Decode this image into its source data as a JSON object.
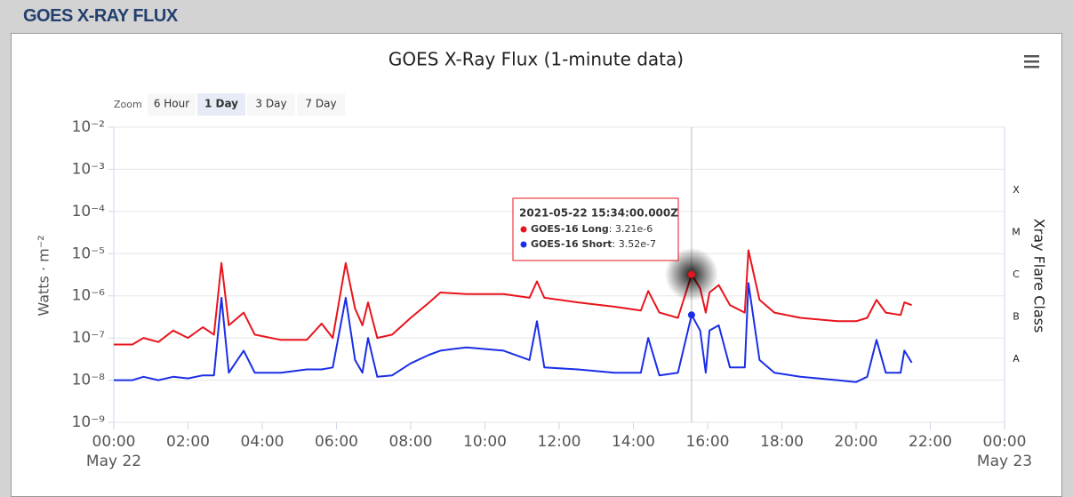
{
  "panel": {
    "title": "GOES X-RAY FLUX"
  },
  "zoom": {
    "label": "Zoom",
    "buttons": [
      "6 Hour",
      "1 Day",
      "3 Day",
      "7 Day"
    ],
    "selected": 1
  },
  "chart_data": {
    "type": "line",
    "title": "GOES X-Ray Flux (1-minute data)",
    "ylabel": "Watts · m⁻²",
    "y2label": "Xray Flare Class",
    "log_y": true,
    "grid": true,
    "ylim": [
      1e-09,
      0.01
    ],
    "yticks": [
      {
        "value": 1e-09,
        "label": "10⁻⁹"
      },
      {
        "value": 1e-08,
        "label": "10⁻⁸"
      },
      {
        "value": 1e-07,
        "label": "10⁻⁷"
      },
      {
        "value": 1e-06,
        "label": "10⁻⁶"
      },
      {
        "value": 1e-05,
        "label": "10⁻⁵"
      },
      {
        "value": 0.0001,
        "label": "10⁻⁴"
      },
      {
        "value": 0.001,
        "label": "10⁻³"
      },
      {
        "value": 0.01,
        "label": "10⁻²"
      }
    ],
    "y2lim": [
      1e-09,
      0.01
    ],
    "y2ticks": [
      {
        "value": 3.16e-08,
        "label": "A"
      },
      {
        "value": 3.16e-07,
        "label": "B"
      },
      {
        "value": 3.16e-06,
        "label": "C"
      },
      {
        "value": 3.16e-05,
        "label": "M"
      },
      {
        "value": 0.000316,
        "label": "X"
      }
    ],
    "xlim": [
      0,
      24
    ],
    "xticks": [
      {
        "value": 0,
        "label": "00:00"
      },
      {
        "value": 2,
        "label": "02:00"
      },
      {
        "value": 4,
        "label": "04:00"
      },
      {
        "value": 6,
        "label": "06:00"
      },
      {
        "value": 8,
        "label": "08:00"
      },
      {
        "value": 10,
        "label": "10:00"
      },
      {
        "value": 12,
        "label": "12:00"
      },
      {
        "value": 14,
        "label": "14:00"
      },
      {
        "value": 16,
        "label": "16:00"
      },
      {
        "value": 18,
        "label": "18:00"
      },
      {
        "value": 20,
        "label": "20:00"
      },
      {
        "value": 22,
        "label": "22:00"
      },
      {
        "value": 24,
        "label": "00:00"
      }
    ],
    "x_date_labels": [
      {
        "value": 0,
        "label": "May 22"
      },
      {
        "value": 24,
        "label": "May 23"
      }
    ],
    "x": [
      0,
      0.5,
      0.8,
      1.2,
      1.6,
      2.0,
      2.4,
      2.7,
      2.9,
      3.1,
      3.5,
      3.8,
      4.5,
      5.2,
      5.6,
      5.9,
      6.25,
      6.5,
      6.7,
      6.85,
      7.1,
      7.5,
      8.0,
      8.5,
      8.8,
      9.5,
      10.5,
      11.2,
      11.4,
      11.6,
      12.5,
      13.5,
      14.2,
      14.4,
      14.7,
      15.2,
      15.57,
      15.8,
      15.95,
      16.05,
      16.3,
      16.6,
      17.0,
      17.1,
      17.4,
      17.8,
      18.5,
      19.5,
      20.0,
      20.3,
      20.55,
      20.8,
      21.2,
      21.3,
      21.5
    ],
    "series": [
      {
        "name": "GOES-16 Long",
        "color": "#e8141c",
        "values": [
          7e-08,
          7e-08,
          1e-07,
          8e-08,
          1.5e-07,
          1e-07,
          1.8e-07,
          1.2e-07,
          6e-06,
          2e-07,
          4e-07,
          1.2e-07,
          9e-08,
          9e-08,
          2.2e-07,
          1e-07,
          6e-06,
          5e-07,
          2e-07,
          7e-07,
          1e-07,
          1.2e-07,
          3e-07,
          7e-07,
          1.2e-06,
          1.1e-06,
          1.1e-06,
          9e-07,
          2.2e-06,
          9e-07,
          7e-07,
          5.5e-07,
          4.5e-07,
          1.3e-06,
          4e-07,
          3e-07,
          3.21e-06,
          1.5e-06,
          4e-07,
          1.2e-06,
          1.8e-06,
          6e-07,
          4e-07,
          1.2e-05,
          8e-07,
          4e-07,
          3e-07,
          2.5e-07,
          2.5e-07,
          3e-07,
          8e-07,
          4e-07,
          3.5e-07,
          7e-07,
          6e-07
        ]
      },
      {
        "name": "GOES-16 Short",
        "color": "#1a2ee6",
        "values": [
          1e-08,
          1e-08,
          1.2e-08,
          1e-08,
          1.2e-08,
          1.1e-08,
          1.3e-08,
          1.3e-08,
          9e-07,
          1.5e-08,
          5e-08,
          1.5e-08,
          1.5e-08,
          1.8e-08,
          1.8e-08,
          2e-08,
          9e-07,
          3e-08,
          1.5e-08,
          1e-07,
          1.2e-08,
          1.3e-08,
          2.5e-08,
          4e-08,
          5e-08,
          6e-08,
          5e-08,
          3e-08,
          2.5e-07,
          2e-08,
          1.8e-08,
          1.5e-08,
          1.5e-08,
          1e-07,
          1.3e-08,
          1.5e-08,
          3.52e-07,
          1.5e-07,
          1.5e-08,
          1.5e-07,
          2e-07,
          2e-08,
          2e-08,
          2e-06,
          3e-08,
          1.5e-08,
          1.2e-08,
          1e-08,
          9e-09,
          1.2e-08,
          9e-08,
          1.5e-08,
          1.5e-08,
          5e-08,
          2.6e-08
        ]
      }
    ],
    "tooltip": {
      "title": "2021-05-22 15:34:00.000Z",
      "x": 15.5667,
      "items": [
        {
          "name": "GOES-16 Long",
          "value": 3.21e-06,
          "label": "3.21e-6"
        },
        {
          "name": "GOES-16 Short",
          "value": 3.52e-07,
          "label": "3.52e-7"
        }
      ]
    }
  }
}
